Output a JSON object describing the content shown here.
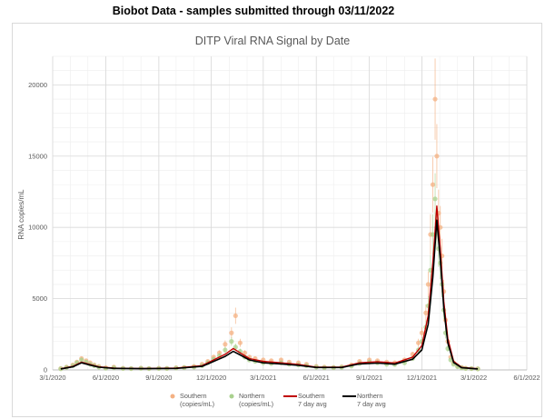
{
  "header": {
    "text": "Biobot Data - samples submitted through 03/11/2022"
  },
  "chart_data": {
    "type": "scatter",
    "title": "DITP Viral RNA Signal by Date",
    "xlabel": "",
    "ylabel": "RNA copies/mL",
    "xlim": [
      "2020-03-01",
      "2022-06-01"
    ],
    "ylim": [
      0,
      22000
    ],
    "x_ticks": [
      "3/1/2020",
      "6/1/2020",
      "9/1/2020",
      "12/1/2020",
      "3/1/2021",
      "6/1/2021",
      "9/1/2021",
      "12/1/2021",
      "3/1/2022",
      "6/1/2022"
    ],
    "y_ticks": [
      0,
      5000,
      10000,
      15000,
      20000
    ],
    "y_tick_labels": [
      "0",
      "5000",
      "10000",
      "15000",
      "20000"
    ],
    "grid": true,
    "legend_position": "bottom",
    "legend": [
      {
        "line1": "Southern",
        "line2": "(copies/mL)"
      },
      {
        "line1": "Northern",
        "line2": "(copies/mL)"
      },
      {
        "line1": "Southern",
        "line2": "7 day avg"
      },
      {
        "line1": "Northern",
        "line2": "7 day avg"
      }
    ],
    "colors": {
      "southern_points": "#f4b183",
      "northern_points": "#a9d18e",
      "southern_avg": "#c00000",
      "northern_avg": "#000000"
    },
    "series": [
      {
        "kind": "points",
        "x": [
          "2020-03-15",
          "2020-03-25",
          "2020-04-05",
          "2020-04-12",
          "2020-04-20",
          "2020-04-28",
          "2020-05-05",
          "2020-05-12",
          "2020-05-20",
          "2020-06-01",
          "2020-06-15",
          "2020-07-01",
          "2020-07-15",
          "2020-08-01",
          "2020-08-15",
          "2020-09-01",
          "2020-09-15",
          "2020-10-01",
          "2020-10-15",
          "2020-11-01",
          "2020-11-15",
          "2020-11-25",
          "2020-12-05",
          "2020-12-15",
          "2020-12-25",
          "2021-01-05",
          "2021-01-12",
          "2021-01-20",
          "2021-01-28",
          "2021-02-05",
          "2021-02-15",
          "2021-03-01",
          "2021-03-15",
          "2021-04-01",
          "2021-04-15",
          "2021-05-01",
          "2021-05-15",
          "2021-06-01",
          "2021-06-15",
          "2021-07-01",
          "2021-07-15",
          "2021-08-01",
          "2021-08-15",
          "2021-09-01",
          "2021-09-15",
          "2021-10-01",
          "2021-10-15",
          "2021-11-01",
          "2021-11-15",
          "2021-11-25",
          "2021-12-01",
          "2021-12-08",
          "2021-12-12",
          "2021-12-16",
          "2021-12-20",
          "2021-12-24",
          "2021-12-27",
          "2021-12-30",
          "2022-01-02",
          "2022-01-05",
          "2022-01-08",
          "2022-01-11",
          "2022-01-15",
          "2022-01-20",
          "2022-01-25",
          "2022-02-01",
          "2022-02-08",
          "2022-02-15",
          "2022-02-25",
          "2022-03-08"
        ],
        "y": [
          100,
          200,
          350,
          550,
          800,
          650,
          500,
          350,
          250,
          150,
          200,
          120,
          100,
          130,
          100,
          120,
          110,
          150,
          180,
          250,
          400,
          600,
          900,
          1200,
          1800,
          2600,
          3800,
          1900,
          1200,
          900,
          800,
          700,
          650,
          700,
          550,
          500,
          400,
          250,
          200,
          180,
          220,
          350,
          600,
          700,
          650,
          550,
          500,
          700,
          1100,
          1900,
          2600,
          4000,
          6000,
          9500,
          13000,
          19000,
          15000,
          11000,
          10000,
          8000,
          5500,
          3500,
          2000,
          900,
          500,
          280,
          180,
          120,
          100,
          80
        ]
      },
      {
        "kind": "points",
        "x": [
          "2020-03-15",
          "2020-03-25",
          "2020-04-05",
          "2020-04-12",
          "2020-04-20",
          "2020-04-28",
          "2020-05-05",
          "2020-05-12",
          "2020-05-20",
          "2020-06-01",
          "2020-06-15",
          "2020-07-01",
          "2020-07-15",
          "2020-08-01",
          "2020-08-15",
          "2020-09-01",
          "2020-09-15",
          "2020-10-01",
          "2020-10-15",
          "2020-11-01",
          "2020-11-15",
          "2020-11-25",
          "2020-12-05",
          "2020-12-15",
          "2020-12-25",
          "2021-01-05",
          "2021-01-12",
          "2021-01-20",
          "2021-01-28",
          "2021-02-05",
          "2021-02-15",
          "2021-03-01",
          "2021-03-15",
          "2021-04-01",
          "2021-04-15",
          "2021-05-01",
          "2021-05-15",
          "2021-06-01",
          "2021-06-15",
          "2021-07-01",
          "2021-07-15",
          "2021-08-01",
          "2021-08-15",
          "2021-09-01",
          "2021-09-15",
          "2021-10-01",
          "2021-10-15",
          "2021-11-01",
          "2021-11-15",
          "2021-11-25",
          "2021-12-01",
          "2021-12-08",
          "2021-12-12",
          "2021-12-16",
          "2021-12-20",
          "2021-12-24",
          "2021-12-27",
          "2021-12-30",
          "2022-01-02",
          "2022-01-05",
          "2022-01-08",
          "2022-01-11",
          "2022-01-15",
          "2022-01-20",
          "2022-01-25",
          "2022-02-01",
          "2022-02-08",
          "2022-02-15",
          "2022-02-25",
          "2022-03-08"
        ],
        "y": [
          80,
          180,
          300,
          500,
          700,
          550,
          400,
          300,
          200,
          120,
          150,
          100,
          90,
          110,
          90,
          100,
          100,
          130,
          160,
          200,
          300,
          500,
          750,
          1000,
          1400,
          2000,
          1600,
          1300,
          900,
          700,
          600,
          500,
          450,
          500,
          400,
          350,
          300,
          200,
          150,
          150,
          180,
          280,
          450,
          550,
          500,
          400,
          380,
          500,
          800,
          1400,
          2000,
          3000,
          4500,
          7000,
          9500,
          12000,
          10000,
          8500,
          7500,
          6000,
          4200,
          2600,
          1500,
          700,
          400,
          220,
          150,
          100,
          90,
          70
        ]
      },
      {
        "kind": "line",
        "x": [
          "2020-03-15",
          "2020-04-05",
          "2020-04-20",
          "2020-05-05",
          "2020-05-20",
          "2020-06-15",
          "2020-08-01",
          "2020-10-01",
          "2020-11-15",
          "2020-12-05",
          "2020-12-25",
          "2021-01-08",
          "2021-01-20",
          "2021-02-05",
          "2021-03-01",
          "2021-04-01",
          "2021-05-01",
          "2021-06-01",
          "2021-07-15",
          "2021-08-15",
          "2021-09-15",
          "2021-10-15",
          "2021-11-15",
          "2021-12-01",
          "2021-12-12",
          "2021-12-20",
          "2021-12-27",
          "2022-01-02",
          "2022-01-08",
          "2022-01-15",
          "2022-01-25",
          "2022-02-08",
          "2022-03-08"
        ],
        "y": [
          80,
          250,
          550,
          380,
          220,
          130,
          100,
          130,
          300,
          700,
          1100,
          1500,
          1200,
          800,
          600,
          500,
          380,
          200,
          200,
          500,
          580,
          480,
          900,
          1700,
          3800,
          7500,
          11500,
          8500,
          4800,
          2200,
          600,
          180,
          80
        ]
      },
      {
        "kind": "line",
        "x": [
          "2020-03-15",
          "2020-04-05",
          "2020-04-20",
          "2020-05-05",
          "2020-05-20",
          "2020-06-15",
          "2020-08-01",
          "2020-10-01",
          "2020-11-15",
          "2020-12-05",
          "2020-12-25",
          "2021-01-08",
          "2021-01-20",
          "2021-02-05",
          "2021-03-01",
          "2021-04-01",
          "2021-05-01",
          "2021-06-01",
          "2021-07-15",
          "2021-08-15",
          "2021-09-15",
          "2021-10-15",
          "2021-11-15",
          "2021-12-01",
          "2021-12-12",
          "2021-12-20",
          "2021-12-27",
          "2022-01-02",
          "2022-01-08",
          "2022-01-15",
          "2022-01-25",
          "2022-02-08",
          "2022-03-08"
        ],
        "y": [
          70,
          220,
          500,
          340,
          190,
          110,
          90,
          110,
          250,
          600,
          950,
          1300,
          1050,
          700,
          500,
          420,
          320,
          170,
          170,
          420,
          480,
          400,
          750,
          1400,
          3200,
          6500,
          10500,
          7800,
          4300,
          1900,
          520,
          150,
          70
        ]
      }
    ]
  }
}
